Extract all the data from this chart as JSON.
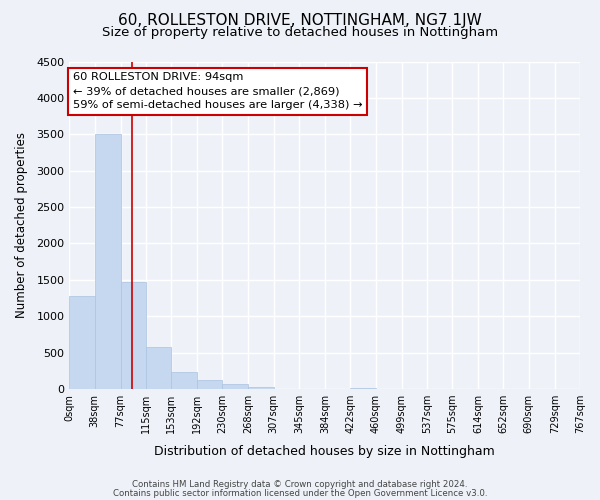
{
  "title": "60, ROLLESTON DRIVE, NOTTINGHAM, NG7 1JW",
  "subtitle": "Size of property relative to detached houses in Nottingham",
  "xlabel": "Distribution of detached houses by size in Nottingham",
  "ylabel": "Number of detached properties",
  "bin_edges": [
    0,
    38,
    77,
    115,
    153,
    192,
    230,
    268,
    307,
    345,
    384,
    422,
    460,
    499,
    537,
    575,
    614,
    652,
    690,
    729,
    767
  ],
  "bin_labels": [
    "0sqm",
    "38sqm",
    "77sqm",
    "115sqm",
    "153sqm",
    "192sqm",
    "230sqm",
    "268sqm",
    "307sqm",
    "345sqm",
    "384sqm",
    "422sqm",
    "460sqm",
    "499sqm",
    "537sqm",
    "575sqm",
    "614sqm",
    "652sqm",
    "690sqm",
    "729sqm",
    "767sqm"
  ],
  "counts": [
    1280,
    3500,
    1470,
    580,
    240,
    130,
    70,
    30,
    0,
    0,
    0,
    20,
    0,
    0,
    0,
    0,
    0,
    0,
    0,
    0
  ],
  "bar_color": "#c5d8f0",
  "bar_edge_color": "#aac4e0",
  "property_line_x": 94,
  "property_line_color": "#cc0000",
  "annotation_line1": "60 ROLLESTON DRIVE: 94sqm",
  "annotation_line2": "← 39% of detached houses are smaller (2,869)",
  "annotation_line3": "59% of semi-detached houses are larger (4,338) →",
  "annotation_box_color": "#ffffff",
  "annotation_box_edge": "#cc0000",
  "ylim": [
    0,
    4500
  ],
  "yticks": [
    0,
    500,
    1000,
    1500,
    2000,
    2500,
    3000,
    3500,
    4000,
    4500
  ],
  "footer_line1": "Contains HM Land Registry data © Crown copyright and database right 2024.",
  "footer_line2": "Contains public sector information licensed under the Open Government Licence v3.0.",
  "bg_color": "#eef2f8",
  "grid_color": "#ffffff",
  "title_fontsize": 11,
  "subtitle_fontsize": 9.5
}
